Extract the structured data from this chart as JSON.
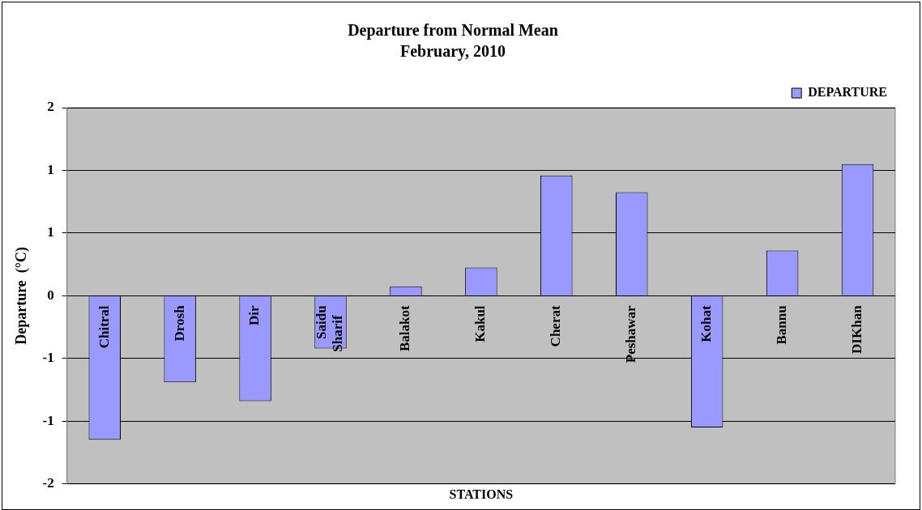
{
  "chart_data": {
    "type": "bar",
    "title": "Departure from Normal Mean",
    "subtitle": "February, 2010",
    "xlabel": "STATIONS",
    "ylabel": "Departure  (°C)",
    "categories": [
      "Chitral",
      "Drosh",
      "Dir",
      "Saidu Sharif",
      "Balakot",
      "Kakul",
      "Cherat",
      "Peshawar",
      "Kohat",
      "Bannu",
      "DIKhan"
    ],
    "series": [
      {
        "name": "DEPARTURE",
        "color": "#9999ff",
        "values": [
          -1.53,
          -0.92,
          -1.12,
          -0.56,
          0.1,
          0.3,
          1.28,
          1.1,
          -1.4,
          0.48,
          1.4
        ]
      }
    ],
    "ylim": [
      -2,
      2
    ],
    "yticks": [
      -2,
      {
        "value": -1.333,
        "label": "-1"
      },
      {
        "value": -0.667,
        "label": "-1"
      },
      0,
      {
        "value": 0.667,
        "label": "1"
      },
      {
        "value": 1.333,
        "label": "1"
      },
      2
    ],
    "grid": "y",
    "legend": "top right"
  }
}
